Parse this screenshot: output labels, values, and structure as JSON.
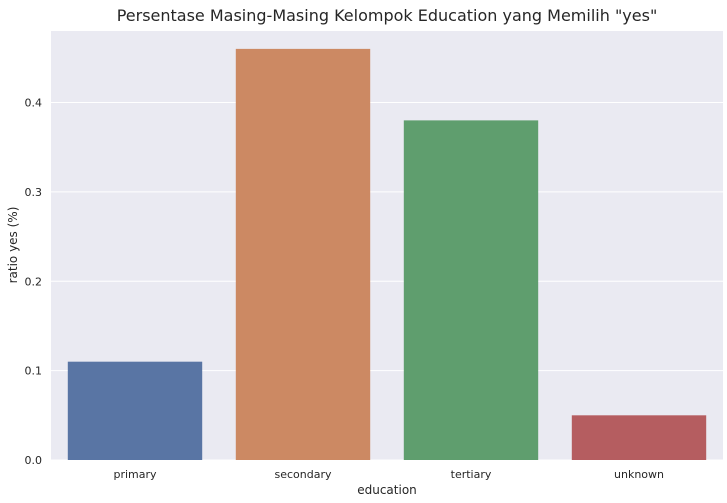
{
  "chart_data": {
    "type": "bar",
    "title": "Persentase Masing-Masing Kelompok Education yang Memilih \"yes\"",
    "xlabel": "education",
    "ylabel": "ratio yes (%)",
    "categories": [
      "primary",
      "secondary",
      "tertiary",
      "unknown"
    ],
    "values": [
      0.11,
      0.46,
      0.38,
      0.05
    ],
    "colors": [
      "#5975a4",
      "#cc8963",
      "#5f9e6e",
      "#b55d60"
    ],
    "ylim": [
      0,
      0.48
    ],
    "yticks": [
      "0.0",
      "0.1",
      "0.2",
      "0.3",
      "0.4"
    ],
    "grid": true,
    "background": "#eaeaf2"
  }
}
